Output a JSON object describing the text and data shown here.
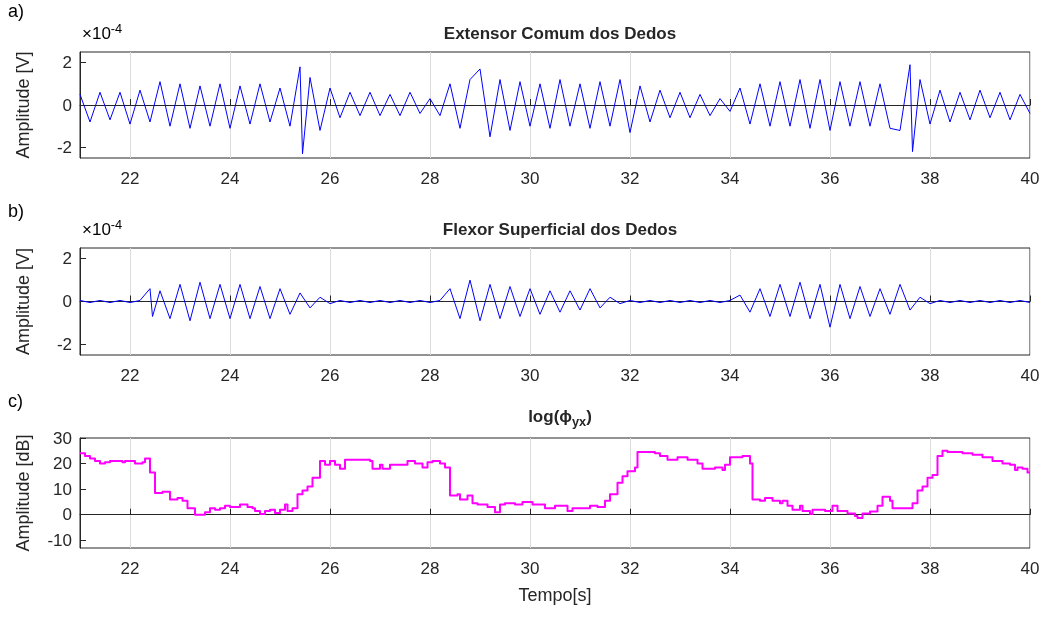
{
  "chart_data": [
    {
      "type": "line",
      "title": "Extensor Comum dos Dedos",
      "ylabel": "Amplitude [V]",
      "annotations": [
        "a)",
        "×10$^{-4}$"
      ],
      "xlim": [
        21,
        40
      ],
      "xticks": [
        22,
        24,
        26,
        28,
        30,
        32,
        34,
        36,
        38,
        40
      ],
      "ylim": [
        -2.5,
        2.5
      ],
      "yticks": [
        -2,
        0,
        2
      ],
      "grid": "x",
      "series": [
        {
          "color": "#0000ff",
          "x": [
            21.0,
            21.2,
            21.4,
            21.6,
            21.8,
            22.0,
            22.2,
            22.4,
            22.6,
            22.8,
            23.0,
            23.2,
            23.4,
            23.6,
            23.8,
            24.0,
            24.2,
            24.4,
            24.6,
            24.8,
            25.0,
            25.2,
            25.4,
            25.45,
            25.6,
            25.8,
            26.0,
            26.2,
            26.4,
            26.6,
            26.8,
            27.0,
            27.2,
            27.4,
            27.6,
            27.8,
            28.0,
            28.2,
            28.4,
            28.6,
            28.8,
            29.0,
            29.2,
            29.4,
            29.6,
            29.8,
            30.0,
            30.2,
            30.4,
            30.6,
            30.8,
            31.0,
            31.2,
            31.4,
            31.6,
            31.8,
            32.0,
            32.2,
            32.4,
            32.6,
            32.8,
            33.0,
            33.2,
            33.4,
            33.6,
            33.8,
            34.0,
            34.2,
            34.4,
            34.6,
            34.8,
            35.0,
            35.2,
            35.4,
            35.6,
            35.8,
            36.0,
            36.2,
            36.4,
            36.6,
            36.8,
            37.0,
            37.2,
            37.4,
            37.6,
            37.65,
            37.8,
            38.0,
            38.2,
            38.4,
            38.6,
            38.8,
            39.0,
            39.2,
            39.4,
            39.6,
            39.8,
            40.0
          ],
          "values": [
            0.5,
            -0.8,
            0.6,
            -0.7,
            0.6,
            -0.9,
            0.7,
            -0.8,
            1.1,
            -1.0,
            1.0,
            -1.1,
            0.9,
            -1.0,
            1.0,
            -1.1,
            0.9,
            -0.9,
            1.0,
            -0.8,
            0.8,
            -1.0,
            1.8,
            -2.3,
            1.3,
            -1.2,
            0.8,
            -0.6,
            0.6,
            -0.5,
            0.6,
            -0.5,
            0.5,
            -0.5,
            0.6,
            -0.4,
            0.3,
            -0.5,
            1.0,
            -1.1,
            1.2,
            1.7,
            -1.5,
            1.2,
            -1.2,
            1.1,
            -1.0,
            1.0,
            -1.1,
            1.2,
            -1.0,
            1.0,
            -1.1,
            1.1,
            -1.0,
            1.2,
            -1.3,
            0.9,
            -0.8,
            0.7,
            -0.6,
            0.6,
            -0.6,
            0.5,
            -0.5,
            0.3,
            -0.3,
            0.8,
            -0.9,
            1.0,
            -1.0,
            1.1,
            -1.0,
            1.2,
            -1.1,
            1.2,
            -1.2,
            1.1,
            -1.0,
            1.1,
            -1.0,
            1.0,
            -1.1,
            -1.2,
            1.9,
            -2.2,
            1.2,
            -0.9,
            0.7,
            -0.8,
            0.6,
            -0.7,
            0.7,
            -0.6,
            0.6,
            -0.7,
            0.5,
            -0.4
          ]
        }
      ]
    },
    {
      "type": "line",
      "title": "Flexor Superficial dos Dedos",
      "ylabel": "Amplitude [V]",
      "annotations": [
        "b)",
        "×10$^{-4}$"
      ],
      "xlim": [
        21,
        40
      ],
      "xticks": [
        22,
        24,
        26,
        28,
        30,
        32,
        34,
        36,
        38,
        40
      ],
      "ylim": [
        -2.5,
        2.5
      ],
      "yticks": [
        -2,
        0,
        2
      ],
      "grid": "x",
      "series": [
        {
          "color": "#0000ff",
          "x": [
            21.0,
            21.2,
            21.4,
            21.6,
            21.8,
            22.0,
            22.2,
            22.4,
            22.45,
            22.6,
            22.8,
            23.0,
            23.2,
            23.4,
            23.6,
            23.8,
            24.0,
            24.2,
            24.4,
            24.6,
            24.8,
            25.0,
            25.2,
            25.4,
            25.6,
            25.8,
            26.0,
            26.2,
            26.4,
            26.6,
            26.8,
            27.0,
            27.2,
            27.4,
            27.6,
            27.8,
            28.0,
            28.2,
            28.4,
            28.6,
            28.8,
            29.0,
            29.2,
            29.4,
            29.6,
            29.8,
            30.0,
            30.2,
            30.4,
            30.6,
            30.8,
            31.0,
            31.2,
            31.4,
            31.6,
            31.8,
            32.0,
            32.2,
            32.4,
            32.6,
            32.8,
            33.0,
            33.2,
            33.4,
            33.6,
            33.8,
            34.0,
            34.2,
            34.4,
            34.6,
            34.8,
            35.0,
            35.2,
            35.4,
            35.6,
            35.8,
            36.0,
            36.2,
            36.4,
            36.6,
            36.8,
            37.0,
            37.2,
            37.4,
            37.6,
            37.8,
            38.0,
            38.2,
            38.4,
            38.6,
            38.8,
            39.0,
            39.2,
            39.4,
            39.6,
            39.8,
            40.0
          ],
          "values": [
            0.05,
            -0.05,
            0.05,
            -0.05,
            0.05,
            -0.05,
            0.05,
            0.6,
            -0.7,
            0.5,
            -0.8,
            0.8,
            -0.9,
            0.9,
            -0.8,
            0.8,
            -0.8,
            0.8,
            -0.8,
            0.7,
            -0.8,
            0.6,
            -0.6,
            0.4,
            -0.3,
            0.2,
            -0.1,
            0.05,
            -0.05,
            0.05,
            -0.05,
            0.05,
            -0.05,
            0.05,
            -0.05,
            0.05,
            -0.05,
            0.05,
            0.6,
            -0.8,
            1.0,
            -0.9,
            0.8,
            -0.8,
            0.7,
            -0.7,
            0.6,
            -0.6,
            0.5,
            -0.5,
            0.5,
            -0.4,
            0.6,
            -0.3,
            0.2,
            -0.1,
            0.05,
            -0.05,
            0.05,
            -0.05,
            0.05,
            -0.05,
            0.05,
            -0.05,
            0.05,
            -0.05,
            0.05,
            0.3,
            -0.5,
            0.6,
            -0.7,
            0.8,
            -0.7,
            0.9,
            -0.8,
            0.8,
            -1.2,
            0.8,
            -0.8,
            0.7,
            -0.7,
            0.6,
            -0.6,
            0.8,
            -0.4,
            0.2,
            -0.1,
            0.05,
            -0.05,
            0.05,
            -0.05,
            0.05,
            -0.05,
            0.05,
            -0.05,
            0.05,
            -0.05
          ]
        }
      ]
    },
    {
      "type": "step",
      "title": "log(ϕ$_{yx}$)",
      "xlabel": "Tempo[s]",
      "ylabel": "Amplitude [dB]",
      "annotations": [
        "c)"
      ],
      "xlim": [
        21,
        40
      ],
      "xticks": [
        22,
        24,
        26,
        28,
        30,
        32,
        34,
        36,
        38,
        40
      ],
      "ylim": [
        -13,
        30
      ],
      "yticks": [
        -10,
        0,
        10,
        20,
        30
      ],
      "grid": "x",
      "series": [
        {
          "color": "#ff00ff",
          "x": [
            21.0,
            21.1,
            21.2,
            21.3,
            21.4,
            21.5,
            21.6,
            21.85,
            21.9,
            22.1,
            22.25,
            22.3,
            22.4,
            22.5,
            22.65,
            22.8,
            22.95,
            23.05,
            23.15,
            23.3,
            23.5,
            23.6,
            23.7,
            23.8,
            23.9,
            24.0,
            24.2,
            24.35,
            24.45,
            24.5,
            24.6,
            24.7,
            24.8,
            24.9,
            25.0,
            25.1,
            25.15,
            25.25,
            25.35,
            25.45,
            25.55,
            25.65,
            25.8,
            25.9,
            26.0,
            26.1,
            26.2,
            26.3,
            26.8,
            26.85,
            27.0,
            27.05,
            27.2,
            27.55,
            27.7,
            27.85,
            27.95,
            28.05,
            28.2,
            28.3,
            28.4,
            28.55,
            28.6,
            28.75,
            28.85,
            28.95,
            29.15,
            29.3,
            29.4,
            29.5,
            29.7,
            29.85,
            30.05,
            30.3,
            30.5,
            30.75,
            30.85,
            31.2,
            31.35,
            31.5,
            31.6,
            31.75,
            31.85,
            31.95,
            32.1,
            32.15,
            32.5,
            32.6,
            32.75,
            32.95,
            33.15,
            33.35,
            33.45,
            33.7,
            33.85,
            33.9,
            34.0,
            34.25,
            34.4,
            34.45,
            34.6,
            34.7,
            34.85,
            35.0,
            35.05,
            35.15,
            35.25,
            35.4,
            35.45,
            35.6,
            35.65,
            35.9,
            36.05,
            36.15,
            36.35,
            36.5,
            36.55,
            36.65,
            36.8,
            36.95,
            37.05,
            37.2,
            37.25,
            37.65,
            37.75,
            37.85,
            37.95,
            38.05,
            38.15,
            38.25,
            38.35,
            38.65,
            38.85,
            39.05,
            39.25,
            39.45,
            39.6,
            39.7,
            39.75,
            39.85,
            39.95,
            40.0
          ],
          "values": [
            24,
            23,
            22,
            21,
            20,
            20.5,
            21,
            20.5,
            21,
            20,
            20.5,
            22,
            16.5,
            8.5,
            9,
            6,
            6.5,
            5.5,
            2.5,
            0,
            1,
            2.5,
            2,
            2.5,
            3.5,
            3,
            4,
            3,
            2.5,
            1.5,
            0.3,
            1.5,
            2,
            0.7,
            2,
            4,
            1.5,
            2.5,
            8,
            9.5,
            11,
            14.5,
            21,
            19.5,
            21,
            19.5,
            18,
            21.5,
            21,
            18,
            19.5,
            18,
            19.5,
            21,
            20,
            18.5,
            20.5,
            21,
            20,
            18.5,
            7.5,
            8,
            6,
            7.5,
            4.5,
            4,
            3,
            1,
            4,
            4.5,
            4,
            5,
            4,
            2.5,
            3.5,
            1.5,
            2.5,
            3.5,
            3,
            5.5,
            8,
            12.5,
            15,
            17,
            18.5,
            24.5,
            24,
            23,
            21.5,
            22.5,
            21.5,
            20,
            18,
            18.5,
            17.5,
            19.5,
            22.5,
            23,
            20,
            6,
            5.5,
            6.5,
            5.5,
            4.5,
            5.5,
            3.5,
            2,
            3.5,
            1.5,
            0.3,
            2,
            1.5,
            3.5,
            1.5,
            0.5,
            -0.5,
            -1.3,
            0.5,
            1.3,
            3.5,
            7,
            5.5,
            2.5,
            4.5,
            9.5,
            11,
            14.5,
            15.5,
            23,
            25,
            24.5,
            24,
            23.5,
            22.5,
            21,
            20,
            19.5,
            17.5,
            18.5,
            18,
            16.5,
            16.5
          ]
        }
      ]
    }
  ]
}
